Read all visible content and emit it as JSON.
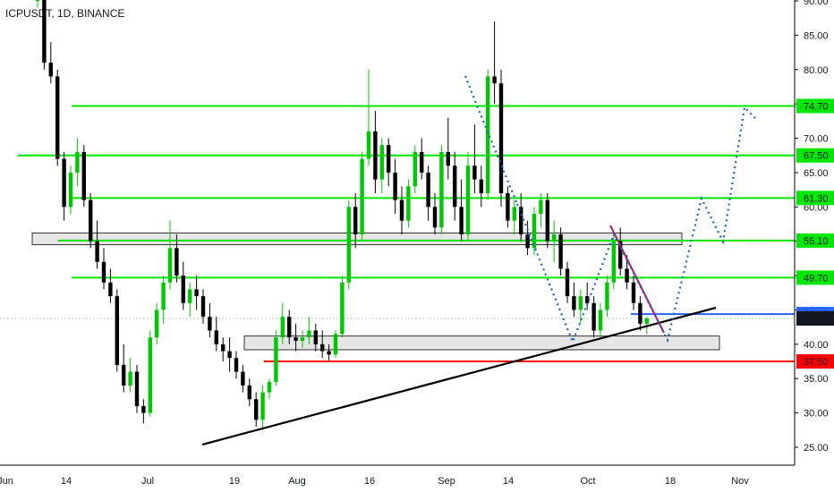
{
  "header": {
    "title": "ICPUSDT, 1D, BINANCE"
  },
  "chart_data": {
    "type": "candlestick",
    "symbol": "ICPUSDT",
    "interval": "1D",
    "exchange": "BINANCE",
    "y_axis": {
      "ticks": [
        "90.00",
        "85.00",
        "80.00",
        "75.00",
        "70.00",
        "65.00",
        "60.00",
        "55.00",
        "50.00",
        "45.00",
        "40.00",
        "35.00",
        "30.00",
        "25.00"
      ],
      "range": [
        22,
        91
      ]
    },
    "x_axis": {
      "ticks": [
        "Jun",
        "14",
        "Jul",
        "19",
        "Aug",
        "16",
        "Sep",
        "14",
        "Oct",
        "18",
        "Nov"
      ]
    },
    "price_levels": [
      {
        "label": "74.70",
        "value": 74.7,
        "color": "#00e600"
      },
      {
        "label": "67.50",
        "value": 67.5,
        "color": "#00e600"
      },
      {
        "label": "61.30",
        "value": 61.3,
        "color": "#00e600"
      },
      {
        "label": "55.10",
        "value": 55.1,
        "color": "#00e600"
      },
      {
        "label": "49.70",
        "value": 49.7,
        "color": "#00e600"
      },
      {
        "label": "44.40",
        "value": 44.4,
        "color": "#2962ff"
      },
      {
        "label": "43.76",
        "value": 43.76,
        "color": "#131722"
      },
      {
        "label": "37.50",
        "value": 37.5,
        "color": "#ff0000"
      }
    ],
    "zones": [
      {
        "from": 54.5,
        "to": 56.2,
        "color": "#e6e6e6"
      },
      {
        "from": 39.2,
        "to": 41.2,
        "color": "#e6e6e6"
      }
    ],
    "candles": [
      [
        90,
        90.8,
        89,
        90.5
      ],
      [
        90.5,
        91,
        80,
        81
      ],
      [
        81,
        84,
        78,
        79
      ],
      [
        79,
        80,
        66,
        67
      ],
      [
        67,
        68,
        58,
        60
      ],
      [
        60,
        66,
        59,
        65
      ],
      [
        65,
        70,
        63,
        68
      ],
      [
        68,
        69,
        60,
        61
      ],
      [
        61,
        62,
        54,
        55
      ],
      [
        55,
        58,
        51,
        52
      ],
      [
        52,
        54,
        48,
        49
      ],
      [
        49,
        51,
        46,
        47
      ],
      [
        47,
        48,
        36,
        37
      ],
      [
        37,
        40,
        33,
        34
      ],
      [
        34,
        38,
        33,
        36
      ],
      [
        36,
        37,
        30,
        31
      ],
      [
        31,
        32,
        28.5,
        30
      ],
      [
        30,
        42,
        29.5,
        41
      ],
      [
        41,
        46,
        40,
        45
      ],
      [
        45,
        50,
        43,
        49
      ],
      [
        49,
        58,
        48,
        54
      ],
      [
        54,
        56,
        49,
        50
      ],
      [
        50,
        52,
        45,
        46
      ],
      [
        46,
        49,
        44,
        48
      ],
      [
        48,
        50,
        45,
        47
      ],
      [
        47,
        48,
        43,
        44
      ],
      [
        44,
        46,
        41,
        42
      ],
      [
        42,
        44,
        39,
        40
      ],
      [
        40,
        41,
        37.5,
        39
      ],
      [
        39,
        41,
        36,
        38
      ],
      [
        38,
        39,
        35,
        36
      ],
      [
        36,
        37,
        33,
        34
      ],
      [
        34,
        35,
        31,
        32
      ],
      [
        32,
        33,
        28,
        29
      ],
      [
        29,
        34,
        27.5,
        33
      ],
      [
        33,
        35,
        32,
        34.5
      ],
      [
        34.5,
        42,
        34,
        41
      ],
      [
        41,
        46,
        40,
        44
      ],
      [
        44,
        45,
        40,
        41
      ],
      [
        41,
        43,
        39,
        40.5
      ],
      [
        40.5,
        42,
        39.5,
        41
      ],
      [
        41,
        44,
        40,
        42
      ],
      [
        42,
        43,
        39,
        40
      ],
      [
        40,
        42,
        38,
        39
      ],
      [
        39,
        40,
        37.5,
        38.5
      ],
      [
        38.5,
        42,
        38,
        41.5
      ],
      [
        41.5,
        50,
        41,
        49
      ],
      [
        49,
        61,
        48,
        60
      ],
      [
        60,
        62,
        54,
        56
      ],
      [
        56,
        68,
        55,
        67
      ],
      [
        67,
        80,
        66,
        71
      ],
      [
        71,
        74,
        62,
        64
      ],
      [
        64,
        70,
        62,
        69
      ],
      [
        69,
        70,
        63,
        65
      ],
      [
        65,
        67,
        59,
        61
      ],
      [
        61,
        63,
        56,
        58
      ],
      [
        58,
        64,
        57,
        63
      ],
      [
        63,
        69,
        62,
        68
      ],
      [
        68,
        70,
        64,
        65
      ],
      [
        65,
        66,
        58,
        60
      ],
      [
        60,
        62,
        56,
        57
      ],
      [
        57,
        69,
        56,
        68
      ],
      [
        68,
        73,
        64,
        66
      ],
      [
        66,
        68,
        58,
        60
      ],
      [
        60,
        64,
        55,
        56
      ],
      [
        56,
        68,
        55,
        66
      ],
      [
        66,
        72,
        62,
        64
      ],
      [
        64,
        66,
        60,
        62
      ],
      [
        62,
        80,
        61,
        79
      ],
      [
        79,
        87,
        75,
        78
      ],
      [
        78,
        80,
        60,
        62
      ],
      [
        62,
        63,
        57,
        58
      ],
      [
        58,
        61,
        56,
        60
      ],
      [
        60,
        62,
        55,
        56
      ],
      [
        56,
        58,
        53,
        54
      ],
      [
        54,
        60,
        53,
        59
      ],
      [
        59,
        62,
        57,
        61
      ],
      [
        61,
        62,
        54,
        55
      ],
      [
        55,
        58,
        52,
        56
      ],
      [
        56,
        57,
        50,
        51
      ],
      [
        51,
        52,
        46,
        47
      ],
      [
        47,
        49,
        44,
        45
      ],
      [
        45,
        48,
        43,
        47
      ],
      [
        47,
        49,
        45,
        46
      ],
      [
        46,
        47,
        41,
        42
      ],
      [
        42,
        46,
        41,
        45
      ],
      [
        45,
        50,
        44,
        49
      ],
      [
        49,
        56,
        48,
        55
      ],
      [
        55,
        57,
        50,
        51
      ],
      [
        51,
        53,
        48,
        49
      ],
      [
        49,
        50,
        45,
        46
      ],
      [
        46,
        47,
        42,
        43
      ],
      [
        43,
        44,
        41.5,
        43.76
      ]
    ],
    "annotations": [
      {
        "type": "trendline",
        "label": "rising support",
        "color": "#000000"
      },
      {
        "type": "trendline",
        "label": "falling resistance",
        "color": "#c2185b"
      },
      {
        "type": "projection",
        "label": "dotted path",
        "color": "#1565c0"
      }
    ],
    "colors": {
      "up": "#00c800",
      "down": "#000000",
      "background": "#ffffff"
    }
  }
}
